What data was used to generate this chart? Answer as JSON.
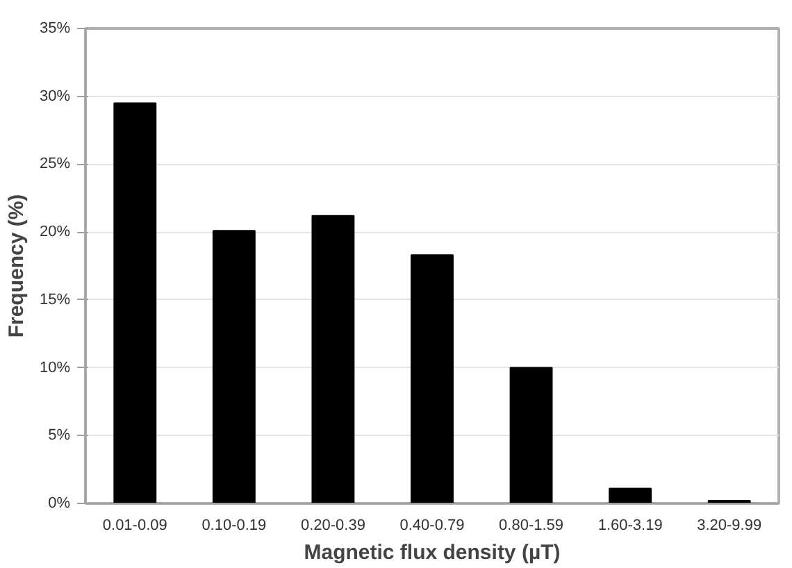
{
  "chart_data": {
    "type": "bar",
    "xlabel": "Magnetic flux density (µT)",
    "ylabel": "Frequency (%)",
    "categories": [
      "0.01-0.09",
      "0.10-0.19",
      "0.20-0.39",
      "0.40-0.79",
      "0.80-1.59",
      "1.60-3.19",
      "3.20-9.99"
    ],
    "values": [
      29.5,
      20.1,
      21.2,
      18.3,
      10.0,
      1.1,
      0.2
    ],
    "color": "#000000",
    "ylim": [
      0,
      35
    ],
    "yticks": [
      {
        "value": 0,
        "label": "0%"
      },
      {
        "value": 5,
        "label": "5%"
      },
      {
        "value": 10,
        "label": "10%"
      },
      {
        "value": 15,
        "label": "15%"
      },
      {
        "value": 20,
        "label": "20%"
      },
      {
        "value": 25,
        "label": "25%"
      },
      {
        "value": 30,
        "label": "30%"
      },
      {
        "value": 35,
        "label": "35%"
      }
    ],
    "grid": "y"
  }
}
